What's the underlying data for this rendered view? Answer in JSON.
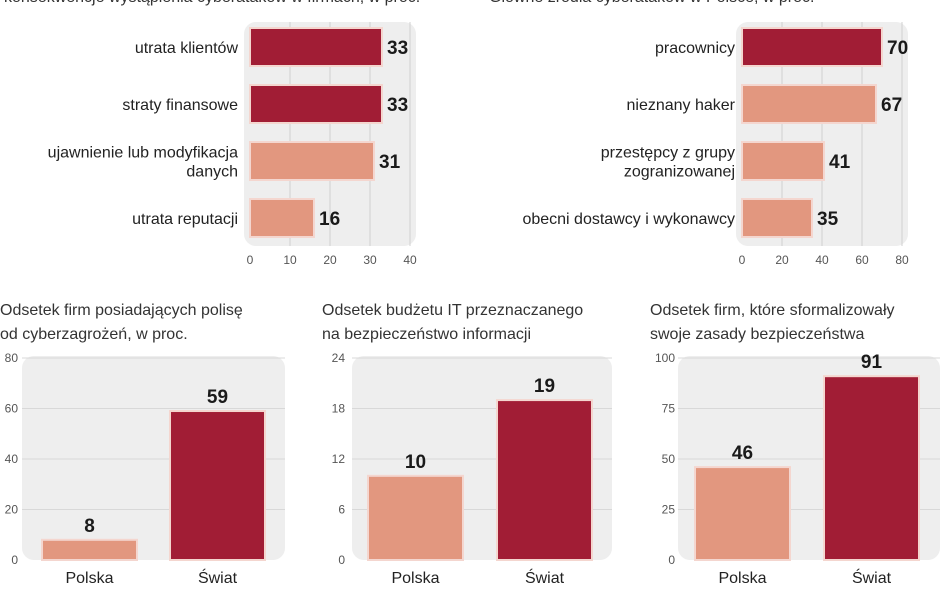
{
  "colors": {
    "dark": "#a11d35",
    "light": "#e2977f",
    "panel": "#eeeeee"
  },
  "chart_data": [
    {
      "type": "bar",
      "orientation": "horizontal",
      "title": "konsekwencje wystąpienia cyberataków w firmach, w proc.",
      "categories": [
        "utrata klientów",
        "straty finansowe",
        "ujawnienie lub modyfikacja danych",
        "utrata reputacji"
      ],
      "category_lines": [
        [
          "utrata klientów"
        ],
        [
          "straty finansowe"
        ],
        [
          "ujawnienie lub modyfikacja",
          "danych"
        ],
        [
          "utrata reputacji"
        ]
      ],
      "values": [
        33,
        33,
        31,
        16
      ],
      "highlight": [
        true,
        true,
        false,
        false
      ],
      "xlim": [
        0,
        40
      ],
      "ticks": [
        0,
        10,
        20,
        30,
        40
      ],
      "grid": true
    },
    {
      "type": "bar",
      "orientation": "horizontal",
      "title": "Główne źródła cyberataków w Polsce, w proc.",
      "categories": [
        "pracownicy",
        "nieznany haker",
        "przestępcy z grupy zograniozowanej",
        "obecni dostawcy i wykonawcy"
      ],
      "category_lines": [
        [
          "pracownicy"
        ],
        [
          "nieznany haker"
        ],
        [
          "przestępcy z grupy",
          "zogranizowanej"
        ],
        [
          "obecni dostawcy i wykonawcy"
        ]
      ],
      "values": [
        70,
        67,
        41,
        35
      ],
      "highlight": [
        true,
        false,
        false,
        false
      ],
      "xlim": [
        0,
        80
      ],
      "ticks": [
        0,
        20,
        40,
        60,
        80
      ],
      "grid": true
    },
    {
      "type": "bar",
      "title_lines": [
        "Odsetek firm posiadających polisę",
        "od cyberzagrożeń, w proc."
      ],
      "categories": [
        "Polska",
        "Świat"
      ],
      "values": [
        8,
        59
      ],
      "highlight": [
        false,
        true
      ],
      "ylim": [
        0,
        80
      ],
      "ticks": [
        0,
        20,
        40,
        60,
        80
      ],
      "grid": true
    },
    {
      "type": "bar",
      "title_lines": [
        "Odsetek budżetu IT przeznaczanego",
        "na bezpieczeństwo informacji"
      ],
      "categories": [
        "Polska",
        "Świat"
      ],
      "values": [
        10,
        19
      ],
      "highlight": [
        false,
        true
      ],
      "ylim": [
        0,
        24
      ],
      "ticks": [
        0,
        6,
        12,
        18,
        24
      ],
      "grid": true
    },
    {
      "type": "bar",
      "title_lines": [
        "Odsetek firm, które sformalizowały",
        "swoje zasady bezpieczeństwa"
      ],
      "categories": [
        "Polska",
        "Świat"
      ],
      "values": [
        46,
        91
      ],
      "highlight": [
        false,
        true
      ],
      "ylim": [
        0,
        100
      ],
      "ticks": [
        0,
        25,
        50,
        75,
        100
      ],
      "grid": true
    }
  ]
}
